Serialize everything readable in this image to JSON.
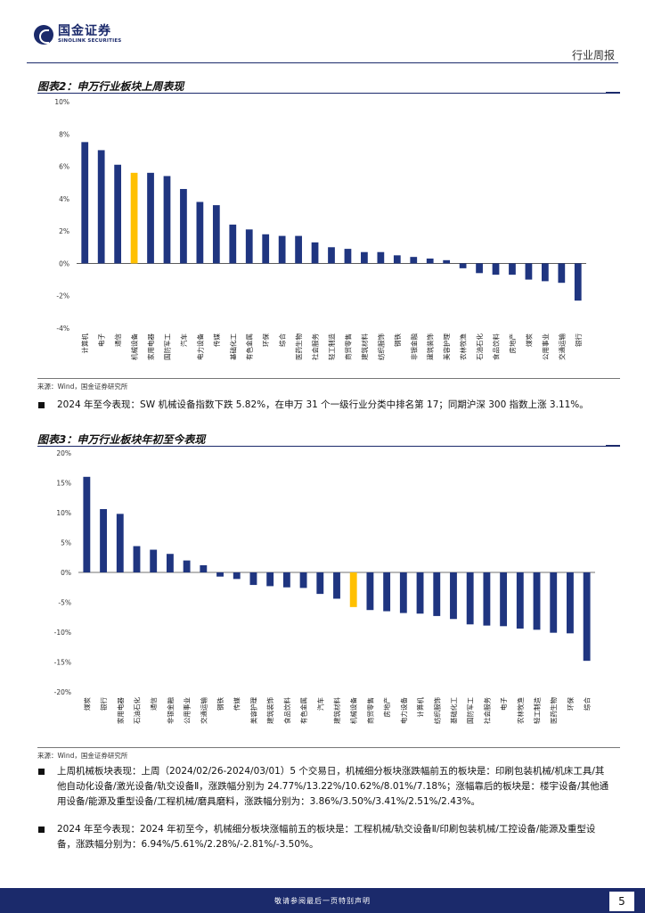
{
  "header": {
    "company_cn": "国金证券",
    "company_en": "SINOLINK SECURITIES",
    "report_type": "行业周报"
  },
  "colors": {
    "brand": "#1b2a6b",
    "bar": "#1f3580",
    "highlight": "#ffc000"
  },
  "figure2": {
    "title": "图表2：申万行业板块上周表现",
    "source": "来源：Wind，国金证券研究所"
  },
  "figure3": {
    "title": "图表3：申万行业板块年初至今表现",
    "source": "来源：Wind，国金证券研究所"
  },
  "paragraphs": {
    "p1": "2024 年至今表现：SW 机械设备指数下跌 5.82%，在申万 31 个一级行业分类中排名第 17；同期沪深 300 指数上涨 3.11%。",
    "p2": "上周机械板块表现：上周（2024/02/26-2024/03/01）5 个交易日，机械细分板块涨跌幅前五的板块是：印刷包装机械/机床工具/其他自动化设备/激光设备/轨交设备Ⅱ，涨跌幅分别为 24.77%/13.22%/10.62%/8.01%/7.18%；涨幅靠后的板块是：楼宇设备/其他通用设备/能源及重型设备/工程机械/磨具磨料，涨跌幅分别为：3.86%/3.50%/3.41%/2.51%/2.43%。",
    "p3": "2024 年至今表现：2024 年初至今，机械细分板块涨幅前五的板块是：工程机械/轨交设备Ⅱ/印刷包装机械/工控设备/能源及重型设备，涨跌幅分别为：6.94%/5.61%/2.28%/-2.81%/-3.50%。"
  },
  "footer": {
    "disclaimer": "敬请参阅最后一页特别声明",
    "page": "5"
  },
  "chart_data": [
    {
      "type": "bar",
      "title": "申万行业板块上周表现",
      "ylim": [
        -4,
        10
      ],
      "yticks": [
        -4,
        -2,
        0,
        2,
        4,
        6,
        8,
        10
      ],
      "ytick_labels": [
        "-4%",
        "-2%",
        "0%",
        "2%",
        "4%",
        "6%",
        "8%",
        "10%"
      ],
      "highlight": "机械设备",
      "categories": [
        "计算机",
        "电子",
        "通信",
        "机械设备",
        "家用电器",
        "国防军工",
        "汽车",
        "电力设备",
        "传媒",
        "基础化工",
        "有色金属",
        "环保",
        "综合",
        "医药生物",
        "社会服务",
        "轻工制造",
        "商贸零售",
        "建筑材料",
        "纺织服饰",
        "钢铁",
        "非银金融",
        "建筑装饰",
        "美容护理",
        "农林牧渔",
        "石油石化",
        "食品饮料",
        "房地产",
        "煤炭",
        "公用事业",
        "交通运输",
        "银行"
      ],
      "values": [
        7.5,
        7.0,
        6.1,
        5.6,
        5.6,
        5.4,
        4.6,
        3.8,
        3.6,
        2.4,
        2.1,
        1.8,
        1.7,
        1.7,
        1.3,
        1.0,
        0.9,
        0.7,
        0.7,
        0.5,
        0.4,
        0.3,
        0.2,
        -0.3,
        -0.6,
        -0.7,
        -0.7,
        -1.0,
        -1.1,
        -1.2,
        -2.3
      ]
    },
    {
      "type": "bar",
      "title": "申万行业板块年初至今表现",
      "ylim": [
        -20,
        20
      ],
      "yticks": [
        -20,
        -15,
        -10,
        -5,
        0,
        5,
        10,
        15,
        20
      ],
      "ytick_labels": [
        "-20%",
        "-15%",
        "-10%",
        "-5%",
        "0%",
        "5%",
        "10%",
        "15%",
        "20%"
      ],
      "highlight": "机械设备",
      "categories": [
        "煤炭",
        "银行",
        "家用电器",
        "石油石化",
        "通信",
        "非银金融",
        "公用事业",
        "交通运输",
        "钢铁",
        "传媒",
        "美容护理",
        "建筑装饰",
        "食品饮料",
        "有色金属",
        "汽车",
        "建筑材料",
        "机械设备",
        "商贸零售",
        "房地产",
        "电力设备",
        "计算机",
        "纺织服饰",
        "基础化工",
        "国防军工",
        "社会服务",
        "电子",
        "农林牧渔",
        "轻工制造",
        "医药生物",
        "环保",
        "综合"
      ],
      "values": [
        16.0,
        10.6,
        9.8,
        4.4,
        3.8,
        3.1,
        2.0,
        1.2,
        -0.7,
        -1.1,
        -2.1,
        -2.3,
        -2.5,
        -2.6,
        -3.6,
        -4.4,
        -5.8,
        -6.3,
        -6.5,
        -6.8,
        -6.9,
        -7.3,
        -7.8,
        -8.7,
        -8.9,
        -9.0,
        -9.4,
        -9.6,
        -10.1,
        -10.2,
        -14.8
      ]
    }
  ]
}
